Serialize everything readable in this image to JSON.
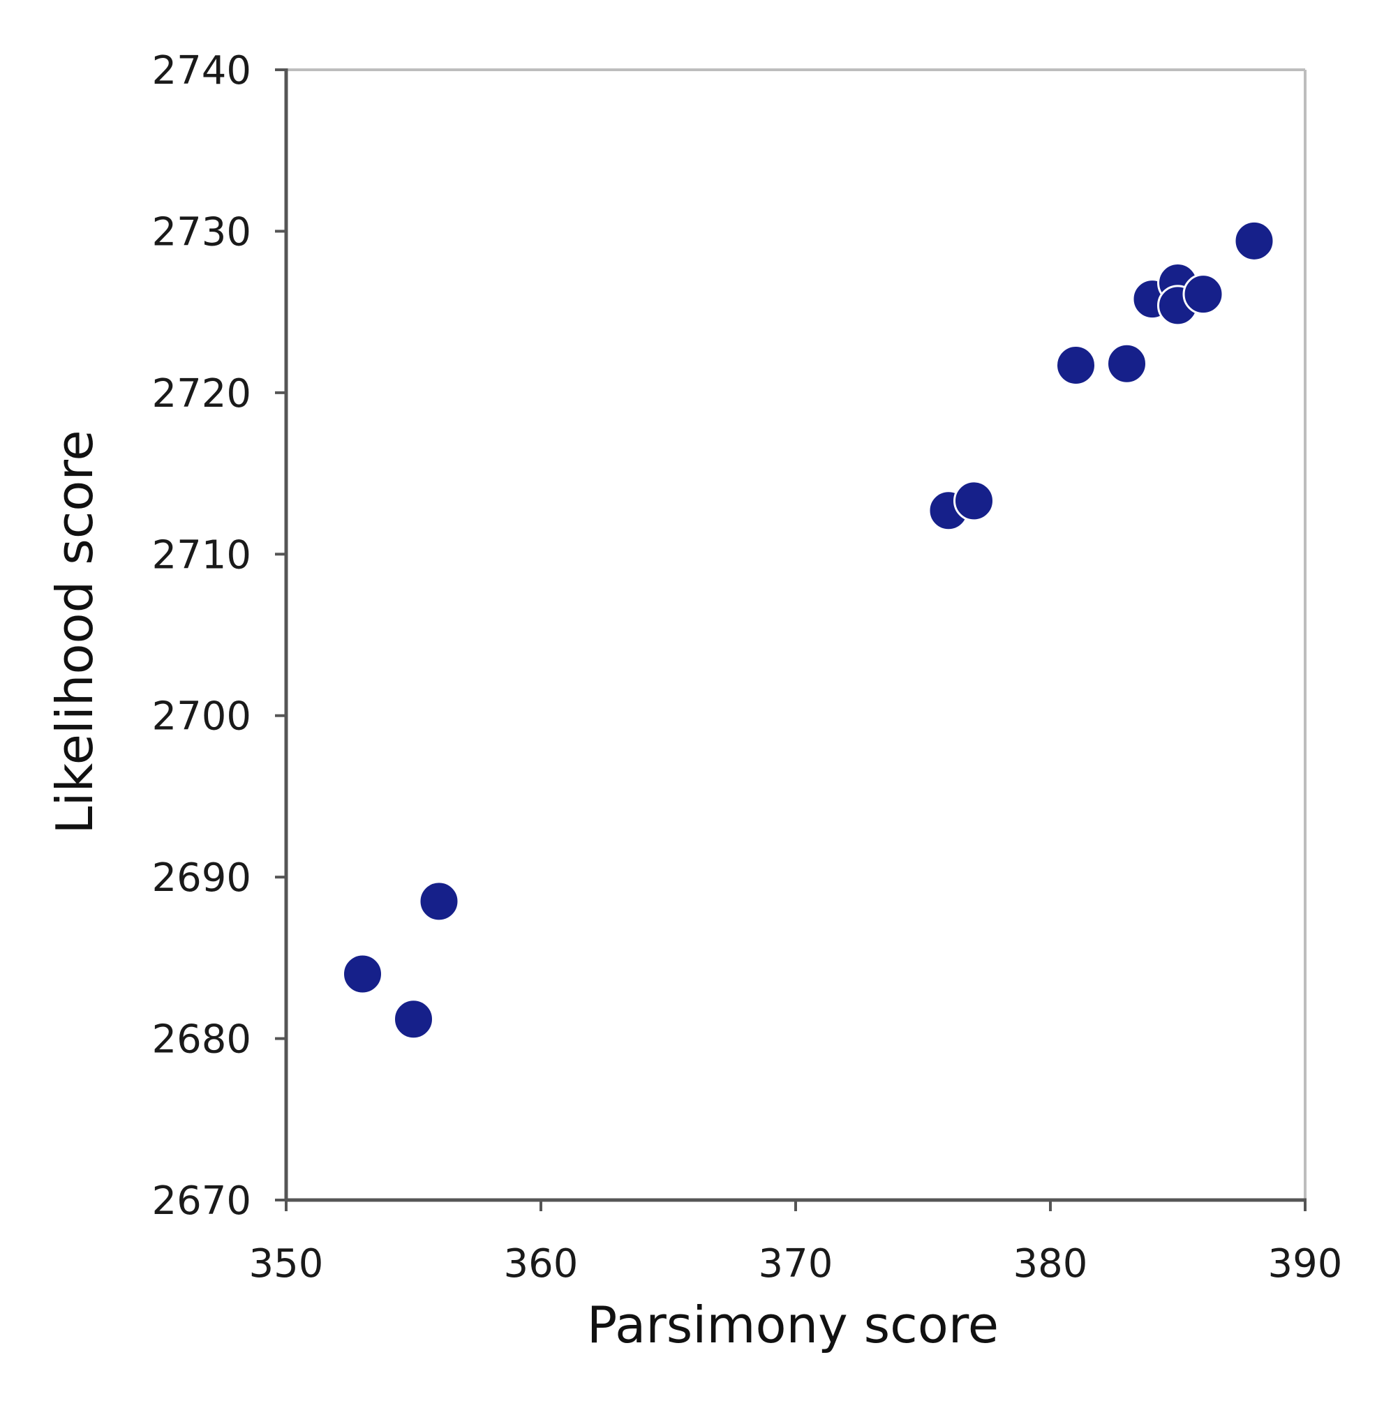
{
  "chart_data": {
    "type": "scatter",
    "title": "",
    "xlabel": "Parsimony score",
    "ylabel": "Likelihood score",
    "xlim": [
      350,
      390
    ],
    "ylim": [
      2670,
      2740
    ],
    "xticks": [
      "350",
      "360",
      "370",
      "380",
      "390"
    ],
    "yticks": [
      "2670",
      "2680",
      "2690",
      "2700",
      "2710",
      "2720",
      "2730",
      "2740"
    ],
    "grid": false,
    "legend": "none",
    "series": [
      {
        "color": "#16208a",
        "points": [
          {
            "x": 353,
            "y": 2684.0
          },
          {
            "x": 355,
            "y": 2681.2
          },
          {
            "x": 356,
            "y": 2688.5
          },
          {
            "x": 376,
            "y": 2712.7
          },
          {
            "x": 377,
            "y": 2713.3
          },
          {
            "x": 381,
            "y": 2721.7
          },
          {
            "x": 383,
            "y": 2721.8
          },
          {
            "x": 384,
            "y": 2725.8
          },
          {
            "x": 385,
            "y": 2726.8
          },
          {
            "x": 385,
            "y": 2725.4
          },
          {
            "x": 386,
            "y": 2726.1
          },
          {
            "x": 388,
            "y": 2729.4
          }
        ]
      }
    ]
  }
}
